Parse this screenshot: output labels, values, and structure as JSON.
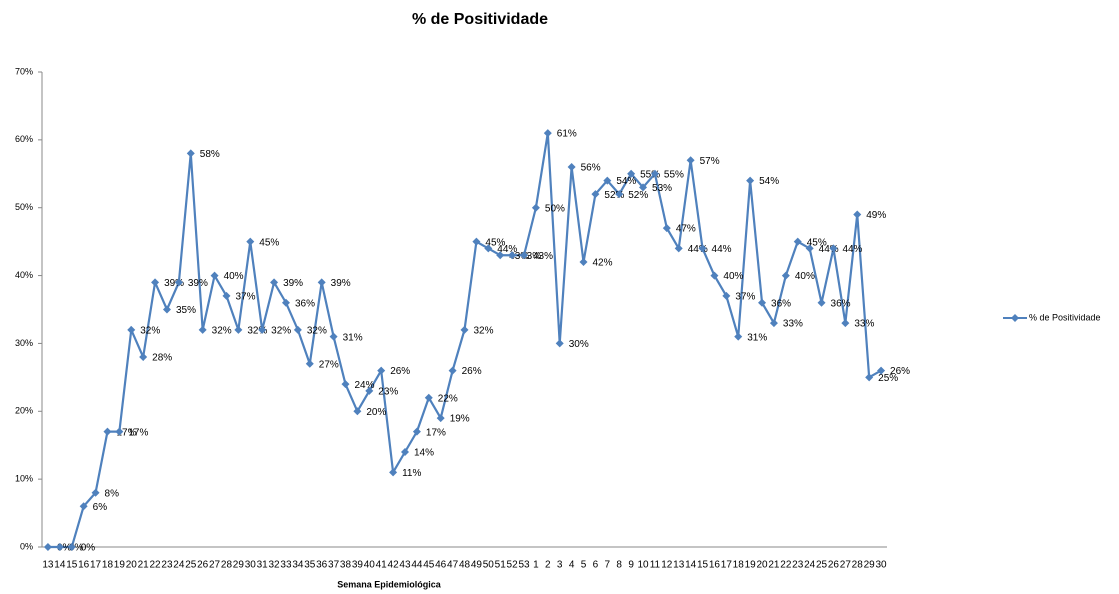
{
  "chart_data": {
    "type": "line",
    "title": "% de Positividade",
    "x_label": "Semana Epidemiológica",
    "categories": [
      "13",
      "14",
      "15",
      "16",
      "17",
      "18",
      "19",
      "20",
      "21",
      "22",
      "23",
      "24",
      "25",
      "26",
      "27",
      "28",
      "29",
      "30",
      "31",
      "32",
      "33",
      "34",
      "35",
      "36",
      "37",
      "38",
      "39",
      "40",
      "41",
      "42",
      "43",
      "44",
      "45",
      "46",
      "47",
      "48",
      "49",
      "50",
      "51",
      "52",
      "53",
      "1",
      "2",
      "3",
      "4",
      "5",
      "6",
      "7",
      "8",
      "9",
      "10",
      "11",
      "12",
      "13",
      "14",
      "15",
      "16",
      "17",
      "18",
      "19",
      "20",
      "21",
      "22",
      "23",
      "24",
      "25",
      "26",
      "27",
      "28",
      "29",
      "30"
    ],
    "series": [
      {
        "name": "% de Positividade",
        "color": "#4f81bd",
        "values": [
          0,
          0,
          0,
          6,
          8,
          17,
          17,
          32,
          28,
          39,
          35,
          39,
          58,
          32,
          40,
          37,
          32,
          45,
          32,
          39,
          36,
          32,
          27,
          39,
          31,
          24,
          20,
          23,
          26,
          11,
          14,
          17,
          22,
          19,
          26,
          32,
          45,
          44,
          43,
          43,
          43,
          50,
          61,
          30,
          56,
          42,
          52,
          54,
          52,
          55,
          53,
          55,
          47,
          44,
          57,
          44,
          40,
          37,
          31,
          54,
          36,
          33,
          40,
          45,
          44,
          36,
          44,
          33,
          49,
          25,
          26
        ],
        "value_labels": [
          "0%",
          "0%",
          "0%",
          "6%",
          "8%",
          "17%",
          "17%",
          "32%",
          "28%",
          "39%",
          "35%",
          "39%",
          "58%",
          "32%",
          "40%",
          "37%",
          "32%",
          "45%",
          "32%",
          "39%",
          "36%",
          "32%",
          "27%",
          "39%",
          "31%",
          "24%",
          "20%",
          "23%",
          "26%",
          "11%",
          "14%",
          "17%",
          "22%",
          "19%",
          "26%",
          "32%",
          "45%",
          "44%",
          "43%",
          "43%",
          "43%",
          "50%",
          "61%",
          "30%",
          "56%",
          "42%",
          "52%",
          "54%",
          "52%",
          "55%",
          "53%",
          "55%",
          "47%",
          "44%",
          "57%",
          "44%",
          "40%",
          "37%",
          "31%",
          "54%",
          "36%",
          "33%",
          "40%",
          "45%",
          "44%",
          "36%",
          "44%",
          "33%",
          "49%",
          "25%",
          "26%"
        ]
      }
    ],
    "ylim": [
      0,
      70
    ],
    "yticks": [
      {
        "value": 0,
        "label": "0%"
      },
      {
        "value": 10,
        "label": "10%"
      },
      {
        "value": 20,
        "label": "20%"
      },
      {
        "value": 30,
        "label": "30%"
      },
      {
        "value": 40,
        "label": "40%"
      },
      {
        "value": 50,
        "label": "50%"
      },
      {
        "value": 60,
        "label": "60%"
      },
      {
        "value": 70,
        "label": "70%"
      }
    ],
    "legend": "right"
  }
}
